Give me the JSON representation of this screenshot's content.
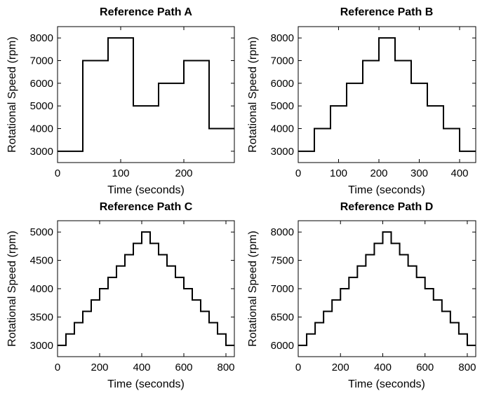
{
  "chart_data": [
    {
      "type": "line",
      "step": true,
      "title": "Reference Path A",
      "xlabel": "Time (seconds)",
      "ylabel": "Rotational Speed (rpm)",
      "xlim": [
        0,
        280
      ],
      "ylim": [
        2500,
        8500
      ],
      "xticks": [
        0,
        100,
        200
      ],
      "yticks": [
        3000,
        4000,
        5000,
        6000,
        7000,
        8000
      ],
      "grid": false,
      "x": [
        0,
        40,
        40,
        80,
        80,
        120,
        120,
        160,
        160,
        200,
        200,
        240,
        240,
        280
      ],
      "y": [
        3000,
        3000,
        7000,
        7000,
        8000,
        8000,
        5000,
        5000,
        6000,
        6000,
        7000,
        7000,
        4000,
        4000
      ]
    },
    {
      "type": "line",
      "step": true,
      "title": "Reference Path B",
      "xlabel": "Time (seconds)",
      "ylabel": "Rotational Speed (rpm)",
      "xlim": [
        0,
        440
      ],
      "ylim": [
        2500,
        8500
      ],
      "xticks": [
        0,
        100,
        200,
        300,
        400
      ],
      "yticks": [
        3000,
        4000,
        5000,
        6000,
        7000,
        8000
      ],
      "grid": false,
      "x": [
        0,
        40,
        40,
        80,
        80,
        120,
        120,
        160,
        160,
        200,
        200,
        240,
        240,
        280,
        280,
        320,
        320,
        360,
        360,
        400,
        400,
        440
      ],
      "y": [
        3000,
        3000,
        4000,
        4000,
        5000,
        5000,
        6000,
        6000,
        7000,
        7000,
        8000,
        8000,
        7000,
        7000,
        6000,
        6000,
        5000,
        5000,
        4000,
        4000,
        3000,
        3000
      ]
    },
    {
      "type": "line",
      "step": true,
      "title": "Reference Path C",
      "xlabel": "Time (seconds)",
      "ylabel": "Rotational Speed (rpm)",
      "xlim": [
        0,
        840
      ],
      "ylim": [
        2800,
        5200
      ],
      "xticks": [
        0,
        200,
        400,
        600,
        800
      ],
      "yticks": [
        3000,
        3500,
        4000,
        4500,
        5000
      ],
      "grid": false,
      "x": [
        0,
        40,
        40,
        80,
        80,
        120,
        120,
        160,
        160,
        200,
        200,
        240,
        240,
        280,
        280,
        320,
        320,
        360,
        360,
        400,
        400,
        440,
        440,
        480,
        480,
        520,
        520,
        560,
        560,
        600,
        600,
        640,
        640,
        680,
        680,
        720,
        720,
        760,
        760,
        800,
        800,
        840
      ],
      "y": [
        3000,
        3000,
        3200,
        3200,
        3400,
        3400,
        3600,
        3600,
        3800,
        3800,
        4000,
        4000,
        4200,
        4200,
        4400,
        4400,
        4600,
        4600,
        4800,
        4800,
        5000,
        5000,
        4800,
        4800,
        4600,
        4600,
        4400,
        4400,
        4200,
        4200,
        4000,
        4000,
        3800,
        3800,
        3600,
        3600,
        3400,
        3400,
        3200,
        3200,
        3000,
        3000
      ]
    },
    {
      "type": "line",
      "step": true,
      "title": "Reference Path D",
      "xlabel": "Time (seconds)",
      "ylabel": "Rotational Speed (rpm)",
      "xlim": [
        0,
        840
      ],
      "ylim": [
        5800,
        8200
      ],
      "xticks": [
        0,
        200,
        400,
        600,
        800
      ],
      "yticks": [
        6000,
        6500,
        7000,
        7500,
        8000
      ],
      "grid": false,
      "x": [
        0,
        40,
        40,
        80,
        80,
        120,
        120,
        160,
        160,
        200,
        200,
        240,
        240,
        280,
        280,
        320,
        320,
        360,
        360,
        400,
        400,
        440,
        440,
        480,
        480,
        520,
        520,
        560,
        560,
        600,
        600,
        640,
        640,
        680,
        680,
        720,
        720,
        760,
        760,
        800,
        800,
        840
      ],
      "y": [
        6000,
        6000,
        6200,
        6200,
        6400,
        6400,
        6600,
        6600,
        6800,
        6800,
        7000,
        7000,
        7200,
        7200,
        7400,
        7400,
        7600,
        7600,
        7800,
        7800,
        8000,
        8000,
        7800,
        7800,
        7600,
        7600,
        7400,
        7400,
        7200,
        7200,
        7000,
        7000,
        6800,
        6800,
        6600,
        6600,
        6400,
        6400,
        6200,
        6200,
        6000,
        6000
      ]
    }
  ]
}
